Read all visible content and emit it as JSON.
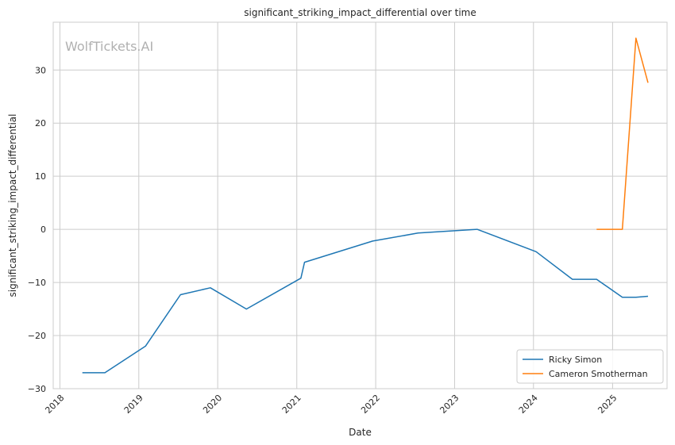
{
  "chart_data": {
    "type": "line",
    "title": "significant_striking_impact_differential over time",
    "xlabel": "Date",
    "ylabel": "significant_striking_impact_differential",
    "watermark": "WolfTickets.AI",
    "x_ticks": [
      "2018",
      "2019",
      "2020",
      "2021",
      "2022",
      "2023",
      "2024",
      "2025"
    ],
    "y_ticks": [
      -30,
      -20,
      -10,
      0,
      10,
      20,
      30
    ],
    "xlim": [
      "2017-12-01",
      "2025-09-10"
    ],
    "ylim": [
      -30,
      39
    ],
    "grid": true,
    "legend_position": "lower-right",
    "series": [
      {
        "name": "Ricky Simon",
        "color": "#1f77b4",
        "points": [
          {
            "x": "2018-04-15",
            "y": -27
          },
          {
            "x": "2018-07-28",
            "y": -27
          },
          {
            "x": "2019-02-01",
            "y": -22
          },
          {
            "x": "2019-07-13",
            "y": -12.3
          },
          {
            "x": "2019-11-28",
            "y": -11
          },
          {
            "x": "2020-05-13",
            "y": -15
          },
          {
            "x": "2021-01-20",
            "y": -9.2
          },
          {
            "x": "2021-02-06",
            "y": -6.2
          },
          {
            "x": "2021-12-18",
            "y": -2.2
          },
          {
            "x": "2022-07-16",
            "y": -0.7
          },
          {
            "x": "2023-04-15",
            "y": 0
          },
          {
            "x": "2024-01-13",
            "y": -4.2
          },
          {
            "x": "2024-06-29",
            "y": -9.4
          },
          {
            "x": "2024-10-19",
            "y": -9.4
          },
          {
            "x": "2025-02-15",
            "y": -12.8
          },
          {
            "x": "2025-04-19",
            "y": -12.8
          },
          {
            "x": "2025-06-14",
            "y": -12.6
          }
        ]
      },
      {
        "name": "Cameron Smotherman",
        "color": "#ff7f0e",
        "points": [
          {
            "x": "2024-10-19",
            "y": 0
          },
          {
            "x": "2025-02-15",
            "y": 0
          },
          {
            "x": "2025-04-19",
            "y": 36
          },
          {
            "x": "2025-06-14",
            "y": 27.6
          }
        ]
      }
    ]
  }
}
